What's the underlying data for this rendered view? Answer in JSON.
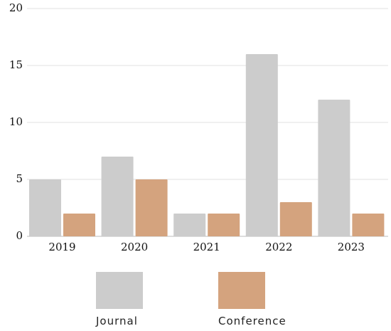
{
  "chart_data": {
    "type": "bar",
    "title": "",
    "xlabel": "",
    "ylabel": "",
    "categories": [
      "2019",
      "2020",
      "2021",
      "2022",
      "2023"
    ],
    "series": [
      {
        "name": "Journal",
        "color": "#cccccc",
        "values": [
          5,
          7,
          2,
          16,
          12
        ]
      },
      {
        "name": "Conference",
        "color": "#d4a37e",
        "values": [
          2,
          5,
          2,
          3,
          2
        ]
      }
    ],
    "ylim": [
      0,
      20
    ],
    "yticks": [
      "0",
      "5",
      "10",
      "15",
      "20"
    ],
    "grid": true,
    "legend_position": "bottom"
  }
}
